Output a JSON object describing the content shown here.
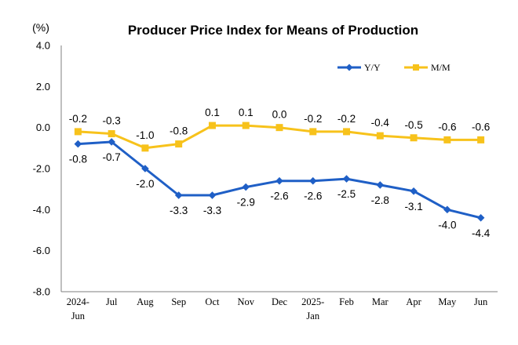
{
  "chart_data": {
    "type": "line",
    "title": "Producer Price Index for Means of Production",
    "ylabel": "(%)",
    "ylim": [
      -8.0,
      4.0
    ],
    "yticks": [
      "4.0",
      "2.0",
      "0.0",
      "-2.0",
      "-4.0",
      "-6.0",
      "-8.0"
    ],
    "categories": [
      [
        "2024-",
        "Jun"
      ],
      [
        "Jul"
      ],
      [
        "Aug"
      ],
      [
        "Sep"
      ],
      [
        "Oct"
      ],
      [
        "Nov"
      ],
      [
        "Dec"
      ],
      [
        "2025-",
        "Jan"
      ],
      [
        "Feb"
      ],
      [
        "Mar"
      ],
      [
        "Apr"
      ],
      [
        "May"
      ],
      [
        "Jun"
      ]
    ],
    "legend_position": "top-right",
    "grid": false,
    "series": [
      {
        "name": "Y/Y",
        "color": "#1f5fc6",
        "marker": "diamond",
        "values": [
          -0.8,
          -0.7,
          -2.0,
          -3.3,
          -3.3,
          -2.9,
          -2.6,
          -2.6,
          -2.5,
          -2.8,
          -3.1,
          -4.0,
          -4.4
        ],
        "labels": [
          "-0.8",
          "-0.7",
          "-2.0",
          "-3.3",
          "-3.3",
          "-2.9",
          "-2.6",
          "-2.6",
          "-2.5",
          "-2.8",
          "-3.1",
          "-4.0",
          "-4.4"
        ]
      },
      {
        "name": "M/M",
        "color": "#f7c21b",
        "marker": "square",
        "values": [
          -0.2,
          -0.3,
          -1.0,
          -0.8,
          0.1,
          0.1,
          0.0,
          -0.2,
          -0.2,
          -0.4,
          -0.5,
          -0.6,
          -0.6
        ],
        "labels": [
          "-0.2",
          "-0.3",
          "-1.0",
          "-0.8",
          "0.1",
          "0.1",
          "0.0",
          "-0.2",
          "-0.2",
          "-0.4",
          "-0.5",
          "-0.6",
          "-0.6"
        ]
      }
    ]
  }
}
